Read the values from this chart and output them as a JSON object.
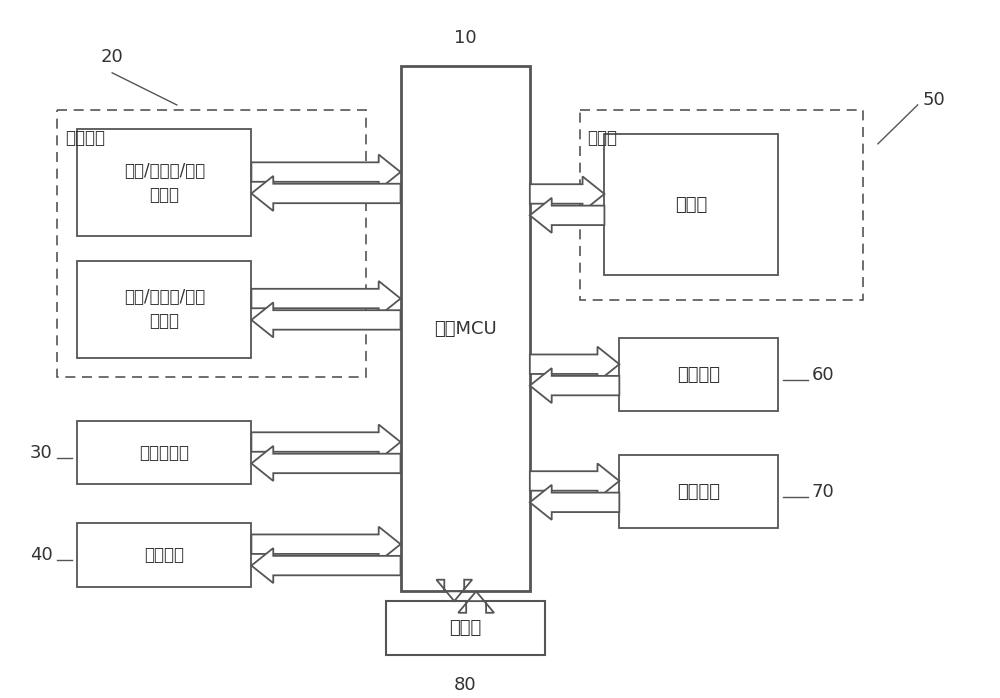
{
  "bg_color": "#ffffff",
  "line_color": "#555555",
  "mcu_label": "主控MCU",
  "box1_label": "红外/超声波/激光\n发射器",
  "box2_label": "红外/超声波/激光\n接收器",
  "box3_label": "红外发射头",
  "box4_label": "蓝牙模块",
  "box5_label": "扬声器",
  "box6_label": "按键电路",
  "box7_label": "电源模块",
  "box8_label": "存储器",
  "dashed1_label": "测距模块",
  "dashed2_label": "可选的",
  "label_10": "10",
  "label_20": "20",
  "label_30": "30",
  "label_40": "40",
  "label_50": "50",
  "label_60": "60",
  "label_70": "70",
  "label_80": "80"
}
